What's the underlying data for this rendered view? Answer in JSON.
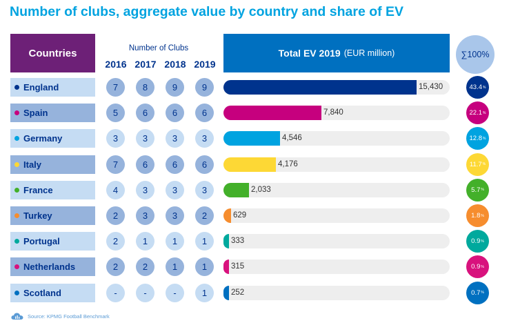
{
  "title": "Number of clubs, aggregate value by country and share of EV",
  "header": {
    "countries_label": "Countries",
    "clubs_caption": "Number of Clubs",
    "years": [
      "2016",
      "2017",
      "2018",
      "2019"
    ],
    "ev_label": "Total EV 2019",
    "ev_unit": "(EUR million)",
    "total_share": "∑100%"
  },
  "source": "Source: KPMG Football Benchmark",
  "chart_data": {
    "type": "bar",
    "title": "Number of clubs, aggregate value by country and share of EV",
    "xlim": [
      0,
      15430
    ],
    "rows": [
      {
        "country": "England",
        "color": "#00338d",
        "clubs": [
          "7",
          "8",
          "9",
          "9"
        ],
        "ev": 15430,
        "ev_label": "15,430",
        "share": "43.4",
        "share_color": "#00338d"
      },
      {
        "country": "Spain",
        "color": "#c6007e",
        "clubs": [
          "5",
          "6",
          "6",
          "6"
        ],
        "ev": 7840,
        "ev_label": "7,840",
        "share": "22.1",
        "share_color": "#c6007e"
      },
      {
        "country": "Germany",
        "color": "#00a3e0",
        "clubs": [
          "3",
          "3",
          "3",
          "3"
        ],
        "ev": 4546,
        "ev_label": "4,546",
        "share": "12.8",
        "share_color": "#00a3e0"
      },
      {
        "country": "Italy",
        "color": "#fdd835",
        "clubs": [
          "7",
          "6",
          "6",
          "6"
        ],
        "ev": 4176,
        "ev_label": "4,176",
        "share": "11.7",
        "share_color": "#fdd835"
      },
      {
        "country": "France",
        "color": "#43b02a",
        "clubs": [
          "4",
          "3",
          "3",
          "3"
        ],
        "ev": 2033,
        "ev_label": "2,033",
        "share": "5.7",
        "share_color": "#43b02a"
      },
      {
        "country": "Turkey",
        "color": "#f68d2e",
        "clubs": [
          "2",
          "3",
          "3",
          "2"
        ],
        "ev": 629,
        "ev_label": "629",
        "share": "1.8",
        "share_color": "#f68d2e"
      },
      {
        "country": "Portugal",
        "color": "#00a99d",
        "clubs": [
          "2",
          "1",
          "1",
          "1"
        ],
        "ev": 333,
        "ev_label": "333",
        "share": "0.9",
        "share_color": "#00a99d"
      },
      {
        "country": "Netherlands",
        "color": "#d8127d",
        "clubs": [
          "2",
          "2",
          "1",
          "1"
        ],
        "ev": 315,
        "ev_label": "315",
        "share": "0.9",
        "share_color": "#d8127d"
      },
      {
        "country": "Scotland",
        "color": "#0070c0",
        "clubs": [
          "-",
          "-",
          "-",
          "1"
        ],
        "ev": 252,
        "ev_label": "252",
        "share": "0.7",
        "share_color": "#0070c0"
      }
    ]
  }
}
